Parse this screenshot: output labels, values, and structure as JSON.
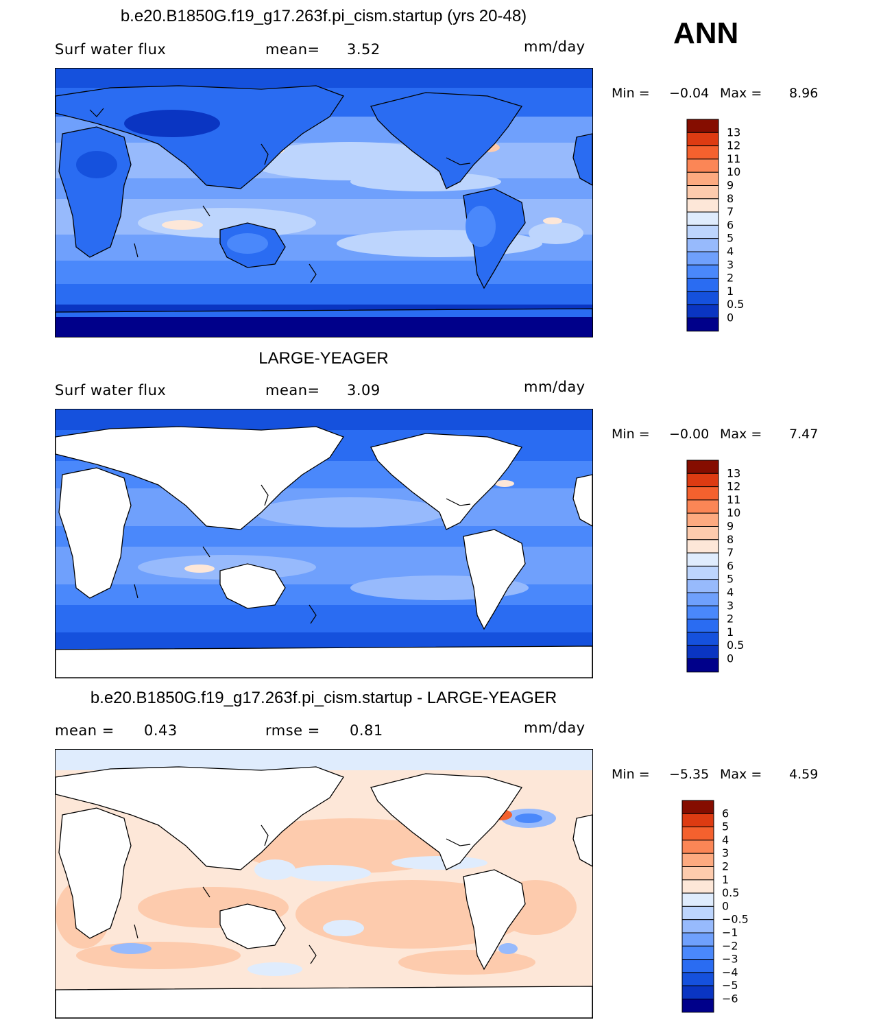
{
  "season": "ANN",
  "colors": {
    "abs_scale": [
      "#00008a",
      "#0319a5",
      "#0a35c2",
      "#1551dd",
      "#2a6cf2",
      "#4a88fb",
      "#6fa0fc",
      "#97bafc",
      "#bdd5fd",
      "#dfecfd",
      "#fde7d8",
      "#fdcbad",
      "#fdaa80",
      "#fb8656",
      "#f4612e",
      "#dd3b12",
      "#b82006",
      "#850d00"
    ],
    "diff_scale": [
      "#00008a",
      "#0319a5",
      "#0a35c2",
      "#1551dd",
      "#2a6cf2",
      "#4a88fb",
      "#6fa0fc",
      "#97bafc",
      "#bdd5fd",
      "#dfecfd",
      "#fde7d8",
      "#fdcbad",
      "#fdaa80",
      "#fb8656",
      "#f4612e",
      "#dd3b12",
      "#b82006",
      "#850d00"
    ],
    "land": "#ffffff",
    "coast": "#000000"
  },
  "panels": [
    {
      "title": "b.e20.B1850G.f19_g17.263f.pi_cism.startup (yrs 20-48)",
      "left_label": "Surf water flux",
      "mid_label": "mean=",
      "mid_value": "3.52",
      "units": "mm/day",
      "min_label": "Min =",
      "min_value": "−0.04",
      "max_label": "Max =",
      "max_value": "8.96",
      "colorbar_labels": [
        "13",
        "12",
        "11",
        "10",
        "9",
        "8",
        "7",
        "6",
        "5",
        "4",
        "3",
        "2",
        "1",
        "0.5",
        "0"
      ],
      "land_masked": false
    },
    {
      "title": "LARGE-YEAGER",
      "left_label": "Surf water flux",
      "mid_label": "mean=",
      "mid_value": "3.09",
      "units": "mm/day",
      "min_label": "Min =",
      "min_value": "−0.00",
      "max_label": "Max =",
      "max_value": "7.47",
      "colorbar_labels": [
        "13",
        "12",
        "11",
        "10",
        "9",
        "8",
        "7",
        "6",
        "5",
        "4",
        "3",
        "2",
        "1",
        "0.5",
        "0"
      ],
      "land_masked": true
    },
    {
      "title": "b.e20.B1850G.f19_g17.263f.pi_cism.startup - LARGE-YEAGER",
      "left_label": "mean =",
      "left_value": "0.43",
      "mid_label": "rmse =",
      "mid_value": "0.81",
      "units": "mm/day",
      "min_label": "Min =",
      "min_value": "−5.35",
      "max_label": "Max =",
      "max_value": "4.59",
      "colorbar_labels": [
        "6",
        "5",
        "4",
        "3",
        "2",
        "1",
        "0.5",
        "0",
        "−0.5",
        "−1",
        "−2",
        "−3",
        "−4",
        "−5",
        "−6"
      ],
      "land_masked": true
    }
  ]
}
